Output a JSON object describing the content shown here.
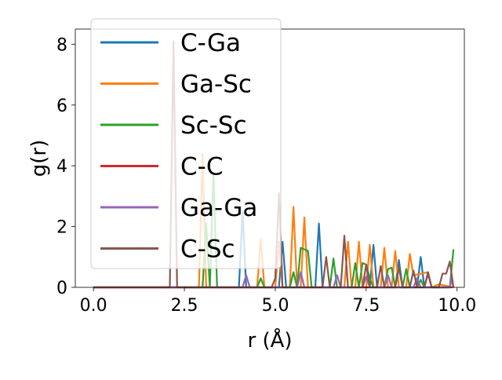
{
  "chart_data": {
    "type": "line",
    "title": "",
    "xlabel": "r (Å)",
    "ylabel": "g(r)",
    "xlim": [
      -0.5,
      10.2
    ],
    "ylim": [
      0,
      8.5
    ],
    "xticks": [
      0.0,
      2.5,
      5.0,
      7.5,
      10.0
    ],
    "xtick_labels": [
      "0.0",
      "2.5",
      "5.0",
      "7.5",
      "10.0"
    ],
    "yticks": [
      0,
      2,
      4,
      6,
      8
    ],
    "ytick_labels": [
      "0",
      "2",
      "4",
      "6",
      "8"
    ],
    "grid": false,
    "legend_position": "top-left",
    "series": [
      {
        "name": "C-Ga",
        "color": "#1f77b4",
        "points": [
          [
            0,
            0
          ],
          [
            4.0,
            0
          ],
          [
            4.1,
            2.5
          ],
          [
            4.2,
            0
          ],
          [
            5.1,
            0
          ],
          [
            5.2,
            1.5
          ],
          [
            5.3,
            0
          ],
          [
            6.1,
            0
          ],
          [
            6.2,
            2.1
          ],
          [
            6.3,
            0
          ],
          [
            7.6,
            0
          ],
          [
            7.7,
            1.4
          ],
          [
            7.8,
            0
          ],
          [
            8.3,
            0
          ],
          [
            8.4,
            0.9
          ],
          [
            8.5,
            0
          ],
          [
            8.9,
            0
          ],
          [
            9.0,
            1.0
          ],
          [
            9.1,
            0
          ],
          [
            9.9,
            0
          ]
        ]
      },
      {
        "name": "Ga-Sc",
        "color": "#ff7f0e",
        "points": [
          [
            0,
            0
          ],
          [
            2.9,
            0
          ],
          [
            3.0,
            4.4
          ],
          [
            3.1,
            0
          ],
          [
            4.5,
            0
          ],
          [
            4.6,
            1.6
          ],
          [
            4.7,
            0
          ],
          [
            5.0,
            0
          ],
          [
            5.1,
            1.5
          ],
          [
            5.2,
            0
          ],
          [
            5.4,
            0
          ],
          [
            5.5,
            2.65
          ],
          [
            5.6,
            0
          ],
          [
            5.7,
            0
          ],
          [
            5.8,
            2.3
          ],
          [
            5.9,
            0
          ],
          [
            6.9,
            0
          ],
          [
            7.0,
            1.5
          ],
          [
            7.1,
            0
          ],
          [
            7.2,
            0
          ],
          [
            7.3,
            1.5
          ],
          [
            7.4,
            0
          ],
          [
            7.5,
            0
          ],
          [
            7.6,
            1.4
          ],
          [
            7.7,
            0
          ],
          [
            7.9,
            0
          ],
          [
            8.0,
            1.3
          ],
          [
            8.1,
            0
          ],
          [
            8.2,
            0
          ],
          [
            8.3,
            1.2
          ],
          [
            8.4,
            0
          ],
          [
            8.6,
            0
          ],
          [
            8.7,
            1.1
          ],
          [
            8.8,
            0.4
          ],
          [
            9.2,
            0.5
          ],
          [
            9.3,
            0
          ],
          [
            9.5,
            0.1
          ],
          [
            9.9,
            0
          ]
        ]
      },
      {
        "name": "Sc-Sc",
        "color": "#2ca02c",
        "points": [
          [
            0,
            0
          ],
          [
            3.0,
            0
          ],
          [
            3.1,
            2.1
          ],
          [
            3.2,
            0
          ],
          [
            3.3,
            3.7
          ],
          [
            3.4,
            0
          ],
          [
            4.5,
            0
          ],
          [
            4.6,
            0.3
          ],
          [
            4.7,
            0
          ],
          [
            5.4,
            0
          ],
          [
            5.5,
            0.5
          ],
          [
            5.6,
            0
          ],
          [
            5.7,
            1.3
          ],
          [
            5.8,
            1.25
          ],
          [
            5.9,
            1.2
          ],
          [
            6.0,
            0
          ],
          [
            6.5,
            0
          ],
          [
            6.6,
            0.95
          ],
          [
            6.7,
            0
          ],
          [
            7.1,
            0
          ],
          [
            7.2,
            0.8
          ],
          [
            7.3,
            0
          ],
          [
            7.4,
            0.8
          ],
          [
            7.5,
            0.75
          ],
          [
            7.6,
            0.3
          ],
          [
            7.7,
            0
          ],
          [
            8.0,
            0
          ],
          [
            8.1,
            0.6
          ],
          [
            8.2,
            0.65
          ],
          [
            8.3,
            0
          ],
          [
            8.5,
            0
          ],
          [
            8.6,
            0.6
          ],
          [
            8.7,
            0
          ],
          [
            8.9,
            0
          ],
          [
            9.0,
            0.25
          ],
          [
            9.1,
            0
          ],
          [
            9.8,
            0
          ],
          [
            9.9,
            1.25
          ]
        ]
      },
      {
        "name": "C-C",
        "color": "#d62728",
        "points": [
          [
            0,
            0
          ],
          [
            9.1,
            0
          ],
          [
            9.2,
            0.45
          ],
          [
            9.3,
            0
          ],
          [
            9.8,
            0
          ],
          [
            9.85,
            0.3
          ],
          [
            9.9,
            0
          ]
        ]
      },
      {
        "name": "Ga-Ga",
        "color": "#9467bd",
        "points": [
          [
            0,
            0
          ],
          [
            4.1,
            0
          ],
          [
            4.2,
            0.4
          ],
          [
            4.3,
            0
          ],
          [
            5.6,
            0
          ],
          [
            5.7,
            0.5
          ],
          [
            5.8,
            0
          ],
          [
            6.6,
            0
          ],
          [
            6.7,
            0.4
          ],
          [
            6.8,
            0
          ],
          [
            7.4,
            0
          ],
          [
            7.5,
            0.35
          ],
          [
            7.6,
            0
          ],
          [
            8.0,
            0
          ],
          [
            8.1,
            0.4
          ],
          [
            8.2,
            0
          ],
          [
            8.8,
            0
          ],
          [
            8.9,
            0.3
          ],
          [
            9.0,
            0
          ],
          [
            9.8,
            0
          ],
          [
            9.85,
            0.4
          ],
          [
            9.9,
            0
          ]
        ]
      },
      {
        "name": "C-Sc",
        "color": "#8c564b",
        "points": [
          [
            0,
            0
          ],
          [
            2.1,
            0
          ],
          [
            2.2,
            8.1
          ],
          [
            2.3,
            0
          ],
          [
            4.9,
            0
          ],
          [
            5.0,
            0.3
          ],
          [
            5.1,
            3.1
          ],
          [
            5.2,
            0
          ],
          [
            6.3,
            0
          ],
          [
            6.4,
            1.0
          ],
          [
            6.5,
            0
          ],
          [
            6.8,
            0
          ],
          [
            6.9,
            1.7
          ],
          [
            7.0,
            0
          ],
          [
            7.4,
            0
          ],
          [
            7.5,
            0.75
          ],
          [
            7.6,
            0
          ],
          [
            7.8,
            0
          ],
          [
            7.9,
            0.7
          ],
          [
            8.0,
            0
          ],
          [
            8.3,
            0
          ],
          [
            8.4,
            0.65
          ],
          [
            8.5,
            0
          ],
          [
            8.7,
            0
          ],
          [
            8.8,
            0.55
          ],
          [
            8.9,
            0
          ],
          [
            9.1,
            0
          ],
          [
            9.2,
            0.5
          ],
          [
            9.3,
            0
          ],
          [
            9.5,
            0
          ],
          [
            9.6,
            0.45
          ],
          [
            9.7,
            0.45
          ],
          [
            9.8,
            0.85
          ],
          [
            9.9,
            0
          ]
        ]
      }
    ]
  }
}
